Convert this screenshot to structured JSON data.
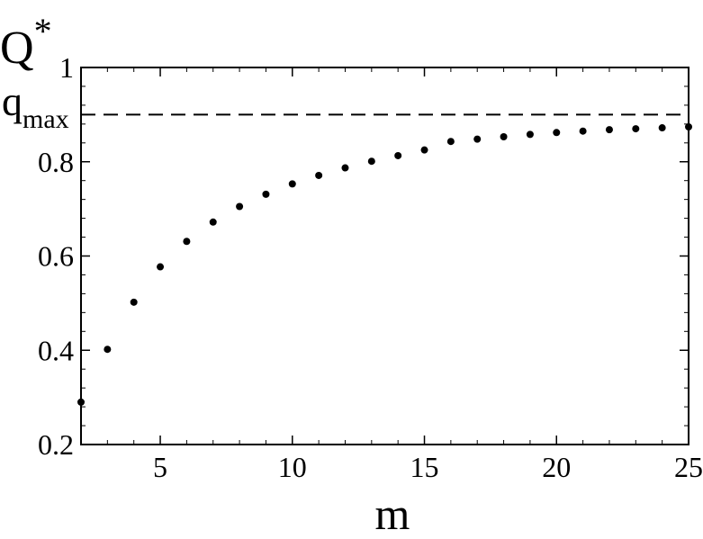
{
  "chart_data": {
    "type": "scatter",
    "title": "",
    "xlabel": "m",
    "ylabel": "Q",
    "ylabel_sup": "*",
    "xlim": [
      2,
      25
    ],
    "ylim": [
      0.2,
      1.0
    ],
    "x_ticks": [
      {
        "value": 5,
        "label": "5"
      },
      {
        "value": 10,
        "label": "10"
      },
      {
        "value": 15,
        "label": "15"
      },
      {
        "value": 20,
        "label": "20"
      },
      {
        "value": 25,
        "label": "25"
      }
    ],
    "y_ticks": [
      {
        "value": 0.2,
        "label": "0.2"
      },
      {
        "value": 0.4,
        "label": "0.4"
      },
      {
        "value": 0.6,
        "label": "0.6"
      },
      {
        "value": 0.8,
        "label": "0.8"
      },
      {
        "value": 1.0,
        "label": "1"
      }
    ],
    "grid": false,
    "reference_line": {
      "y": 0.9,
      "style": "dashed",
      "label": "q",
      "label_sub": "max"
    },
    "series": [
      {
        "marker": "dot",
        "color": "#000000",
        "x": [
          2,
          3,
          4,
          5,
          6,
          7,
          8,
          9,
          10,
          11,
          12,
          13,
          14,
          15,
          16,
          17,
          18,
          19,
          20,
          21,
          22,
          23,
          24,
          25
        ],
        "y": [
          0.29,
          0.402,
          0.502,
          0.577,
          0.631,
          0.672,
          0.705,
          0.731,
          0.753,
          0.771,
          0.787,
          0.801,
          0.813,
          0.825,
          0.843,
          0.848,
          0.853,
          0.858,
          0.862,
          0.865,
          0.868,
          0.87,
          0.872,
          0.874
        ]
      }
    ]
  }
}
